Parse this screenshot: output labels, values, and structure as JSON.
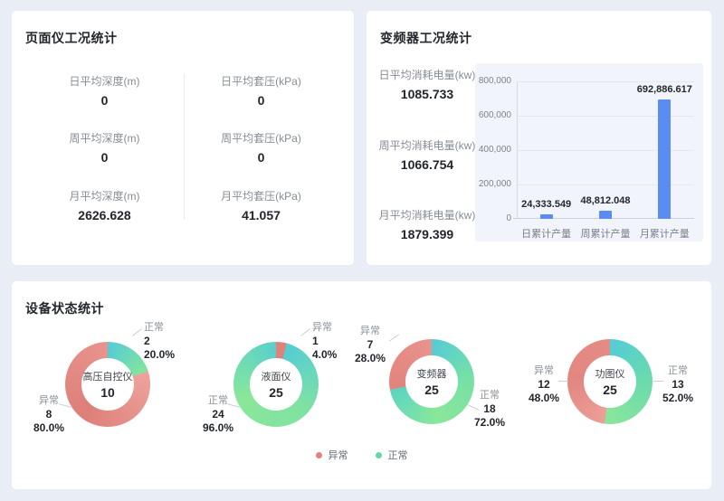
{
  "page": {
    "background": "#e9edf5"
  },
  "cards": {
    "gauge": {
      "title": "页面仪工况统计",
      "stats": [
        {
          "label": "日平均深度(m)",
          "value": "0"
        },
        {
          "label": "日平均套压(kPa)",
          "value": "0"
        },
        {
          "label": "周平均深度(m)",
          "value": "0"
        },
        {
          "label": "周平均套压(kPa)",
          "value": "0"
        },
        {
          "label": "月平均深度(m)",
          "value": "2626.628"
        },
        {
          "label": "月平均套压(kPa)",
          "value": "41.057"
        }
      ]
    },
    "inverter": {
      "title": "变频器工况统计",
      "stats": [
        {
          "label": "日平均消耗电量(kw)",
          "value": "1085.733"
        },
        {
          "label": "周平均消耗电量(kw)",
          "value": "1066.754"
        },
        {
          "label": "月平均消耗电量(kw)",
          "value": "1879.399"
        }
      ]
    },
    "status": {
      "title": "设备状态统计"
    }
  },
  "chart_data": [
    {
      "type": "bar",
      "title": "",
      "categories": [
        "日累计产量",
        "周累计产量",
        "月累计产量"
      ],
      "values": [
        24333.549,
        48812.048,
        692886.617
      ],
      "value_labels": [
        "24,333.549",
        "48,812.048",
        "692,886.617"
      ],
      "ylim": [
        0,
        800000
      ],
      "yticks": [
        "800,000",
        "600,000",
        "400,000",
        "200,000",
        "0"
      ],
      "grid": true,
      "bar_color": "#5b8cf2",
      "panel_bg": "#f1f4fa"
    },
    {
      "type": "pie",
      "subtype": "donut-group",
      "legend_position": "bottom-center",
      "donuts": [
        {
          "name": "高压自控仪",
          "total": "10",
          "slices": [
            {
              "label": "正常",
              "count": "2",
              "percent": "20.0%",
              "value": 20,
              "colors": [
                "#54ccd5",
                "#83e49d"
              ]
            },
            {
              "label": "异常",
              "count": "8",
              "percent": "80.0%",
              "value": 80,
              "colors": [
                "#eda29b",
                "#de7f79",
                "#e8938d"
              ]
            }
          ]
        },
        {
          "name": "液面仪",
          "total": "25",
          "slices": [
            {
              "label": "异常",
              "count": "1",
              "percent": "4.0%",
              "value": 4,
              "colors": [
                "#e2807a",
                "#e2807a"
              ]
            },
            {
              "label": "正常",
              "count": "24",
              "percent": "96.0%",
              "value": 96,
              "colors": [
                "#54ccd5",
                "#7fe2a2",
                "#8ae79a",
                "#58d0cc"
              ]
            }
          ]
        },
        {
          "name": "变频器",
          "total": "25",
          "slices": [
            {
              "label": "正常",
              "count": "18",
              "percent": "72.0%",
              "value": 72,
              "colors": [
                "#54ccd5",
                "#77e0a6",
                "#8ae79a",
                "#5cd4c2"
              ]
            },
            {
              "label": "异常",
              "count": "7",
              "percent": "28.0%",
              "value": 28,
              "colors": [
                "#e2837d",
                "#e8938d"
              ]
            }
          ]
        },
        {
          "name": "功图仪",
          "total": "25",
          "slices": [
            {
              "label": "正常",
              "count": "13",
              "percent": "52.0%",
              "value": 52,
              "colors": [
                "#54ccd5",
                "#6cdbab",
                "#8ae79a"
              ]
            },
            {
              "label": "异常",
              "count": "12",
              "percent": "48.0%",
              "value": 48,
              "colors": [
                "#ec9f98",
                "#e28680",
                "#e58b85"
              ]
            }
          ]
        }
      ]
    }
  ],
  "legend": {
    "items": [
      {
        "label": "异常",
        "color": "#e87f78"
      },
      {
        "label": "正常",
        "color": "#5ed9a8"
      }
    ]
  }
}
